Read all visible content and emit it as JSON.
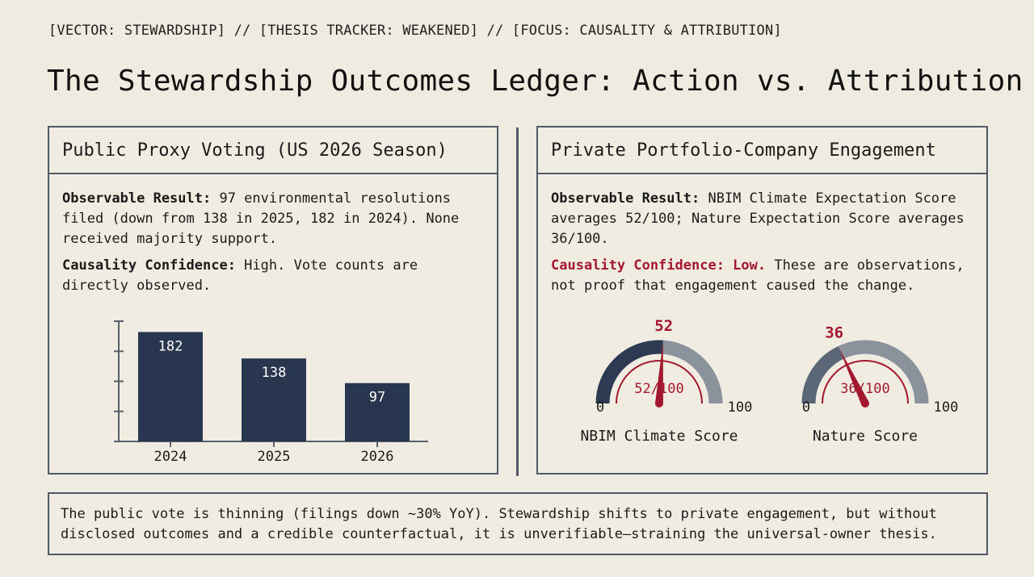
{
  "tagline": "[VECTOR: STEWARDSHIP] // [THESIS TRACKER: WEAKENED] // [FOCUS: CAUSALITY & ATTRIBUTION]",
  "title": "The Stewardship Outcomes Ledger: Action vs. Attribution",
  "left_panel": {
    "heading": "Public Proxy Voting (US 2026 Season)",
    "result_label": "Observable Result:",
    "result_text": " 97 environmental resolutions filed (down from 138 in 2025, 182 in 2024). None received majority support.",
    "confidence_label": "Causality Confidence:",
    "confidence_text": " High. Vote counts are directly observed."
  },
  "right_panel": {
    "heading": "Private Portfolio-Company Engagement",
    "result_label": "Observable Result:",
    "result_text": " NBIM Climate Expectation Score averages 52/100; Nature Expectation Score averages 36/100.",
    "confidence_label": "Causality Confidence: Low.",
    "confidence_text": " These are observations, not proof that engagement caused the change."
  },
  "footer": "The public vote is thinning (filings down ~30% YoY). Stewardship shifts to private engagement, but without disclosed outcomes and a credible counterfactual, it is unverifiable—straining the universal-owner thesis.",
  "colors": {
    "bar": "#293650",
    "accent_red": "#a3182e",
    "gauge_dark": "#2d3a52",
    "gauge_mid": "#5b6776",
    "border": "#4f5a66"
  },
  "chart_data": [
    {
      "type": "bar",
      "categories": [
        "2024",
        "2025",
        "2026"
      ],
      "values": [
        182,
        138,
        97
      ],
      "title": "",
      "xlabel": "",
      "ylabel": "",
      "ylim": [
        0,
        200
      ]
    },
    {
      "type": "gauge",
      "label": "NBIM Climate Score",
      "value": 52,
      "value_text": "52",
      "center_text": "52/100",
      "min": 0,
      "max": 100,
      "min_label": "0",
      "max_label": "100"
    },
    {
      "type": "gauge",
      "label": "Nature Score",
      "value": 36,
      "value_text": "36",
      "center_text": "36/100",
      "min": 0,
      "max": 100,
      "min_label": "0",
      "max_label": "100"
    }
  ]
}
